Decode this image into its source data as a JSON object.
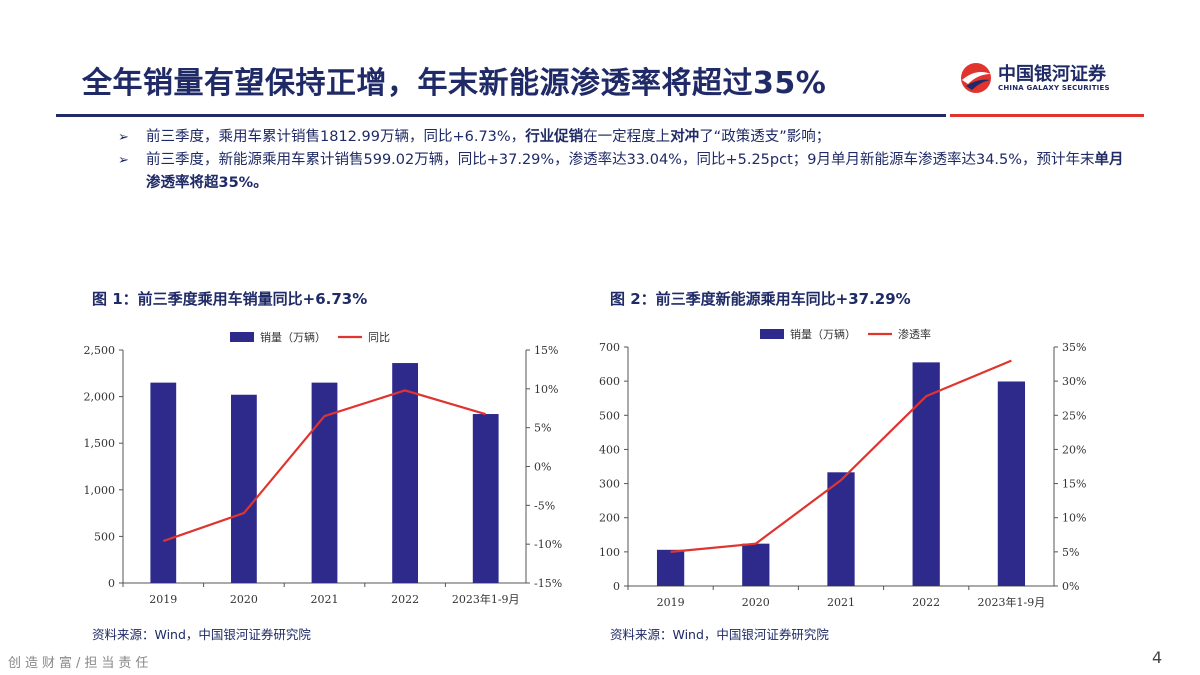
{
  "header": {
    "title": "全年销量有望保持正增，年末新能源渗透率将超过35%",
    "logo_cn": "中国银河证券",
    "logo_en": "CHINA GALAXY SECURITIES"
  },
  "colors": {
    "navy": "#1f2a66",
    "bar": "#2e2a8c",
    "line": "#e0342f"
  },
  "bullets": [
    {
      "mark": "➢",
      "parts": [
        {
          "t": "前三季度，乘用车累计销售1812.99万辆，同比+6.73%，",
          "b": false
        },
        {
          "t": "行业促销",
          "b": true
        },
        {
          "t": "在一定程度上",
          "b": false
        },
        {
          "t": "对冲",
          "b": true
        },
        {
          "t": "了“政策透支”影响；",
          "b": false
        }
      ]
    },
    {
      "mark": "➢",
      "parts": [
        {
          "t": "前三季度，新能源乘用车累计销售599.02万辆，同比+37.29%，渗透率达33.04%，同比+5.25pct；9月单月新能源车渗透率达34.5%，预计年末",
          "b": false
        },
        {
          "t": "单月渗透率将超35%。",
          "b": true
        }
      ]
    }
  ],
  "figures": [
    {
      "title": "图 1：前三季度乘用车销量同比+6.73%",
      "source": "资料来源：Wind，中国银河证券研究院"
    },
    {
      "title": "图 2：前三季度新能源乘用车同比+37.29%",
      "source": "资料来源：Wind，中国银河证券研究院"
    }
  ],
  "chart_data": [
    {
      "type": "bar",
      "title": "前三季度乘用车销量同比+6.73%",
      "categories": [
        "2019",
        "2020",
        "2021",
        "2022",
        "2023年1-9月"
      ],
      "series": [
        {
          "name": "销量（万辆）",
          "type": "bar",
          "axis": "left",
          "values": [
            2150,
            2020,
            2150,
            2360,
            1813
          ]
        },
        {
          "name": "同比",
          "type": "line",
          "axis": "right",
          "values": [
            -9.6,
            -6.0,
            6.5,
            9.8,
            6.73
          ]
        }
      ],
      "ylim": [
        0,
        2500
      ],
      "yticks": [
        0,
        500,
        1000,
        1500,
        2000,
        2500
      ],
      "ytick_labels": [
        "0",
        "500",
        "1,000",
        "1,500",
        "2,000",
        "2,500"
      ],
      "y2lim": [
        -15,
        15
      ],
      "y2ticks": [
        -15,
        -10,
        -5,
        0,
        5,
        10,
        15
      ],
      "y2tick_labels": [
        "-15%",
        "-10%",
        "-5%",
        "0%",
        "5%",
        "10%",
        "15%"
      ],
      "legend_position": "top-center",
      "grid": false
    },
    {
      "type": "bar",
      "title": "前三季度新能源乘用车同比+37.29%",
      "categories": [
        "2019",
        "2020",
        "2021",
        "2022",
        "2023年1-9月"
      ],
      "series": [
        {
          "name": "销量（万辆）",
          "type": "bar",
          "axis": "left",
          "values": [
            106,
            124,
            333,
            655,
            599
          ]
        },
        {
          "name": "渗透率",
          "type": "line",
          "axis": "right",
          "values": [
            5.0,
            6.2,
            15.5,
            27.8,
            33.0
          ]
        }
      ],
      "ylim": [
        0,
        700
      ],
      "yticks": [
        0,
        100,
        200,
        300,
        400,
        500,
        600,
        700
      ],
      "ytick_labels": [
        "0",
        "100",
        "200",
        "300",
        "400",
        "500",
        "600",
        "700"
      ],
      "y2lim": [
        0,
        35
      ],
      "y2ticks": [
        0,
        5,
        10,
        15,
        20,
        25,
        30,
        35
      ],
      "y2tick_labels": [
        "0%",
        "5%",
        "10%",
        "15%",
        "20%",
        "25%",
        "30%",
        "35%"
      ],
      "legend_position": "top-center",
      "grid": false
    }
  ],
  "footer": {
    "slogan": "创造财富/担当责任",
    "page": "4"
  }
}
